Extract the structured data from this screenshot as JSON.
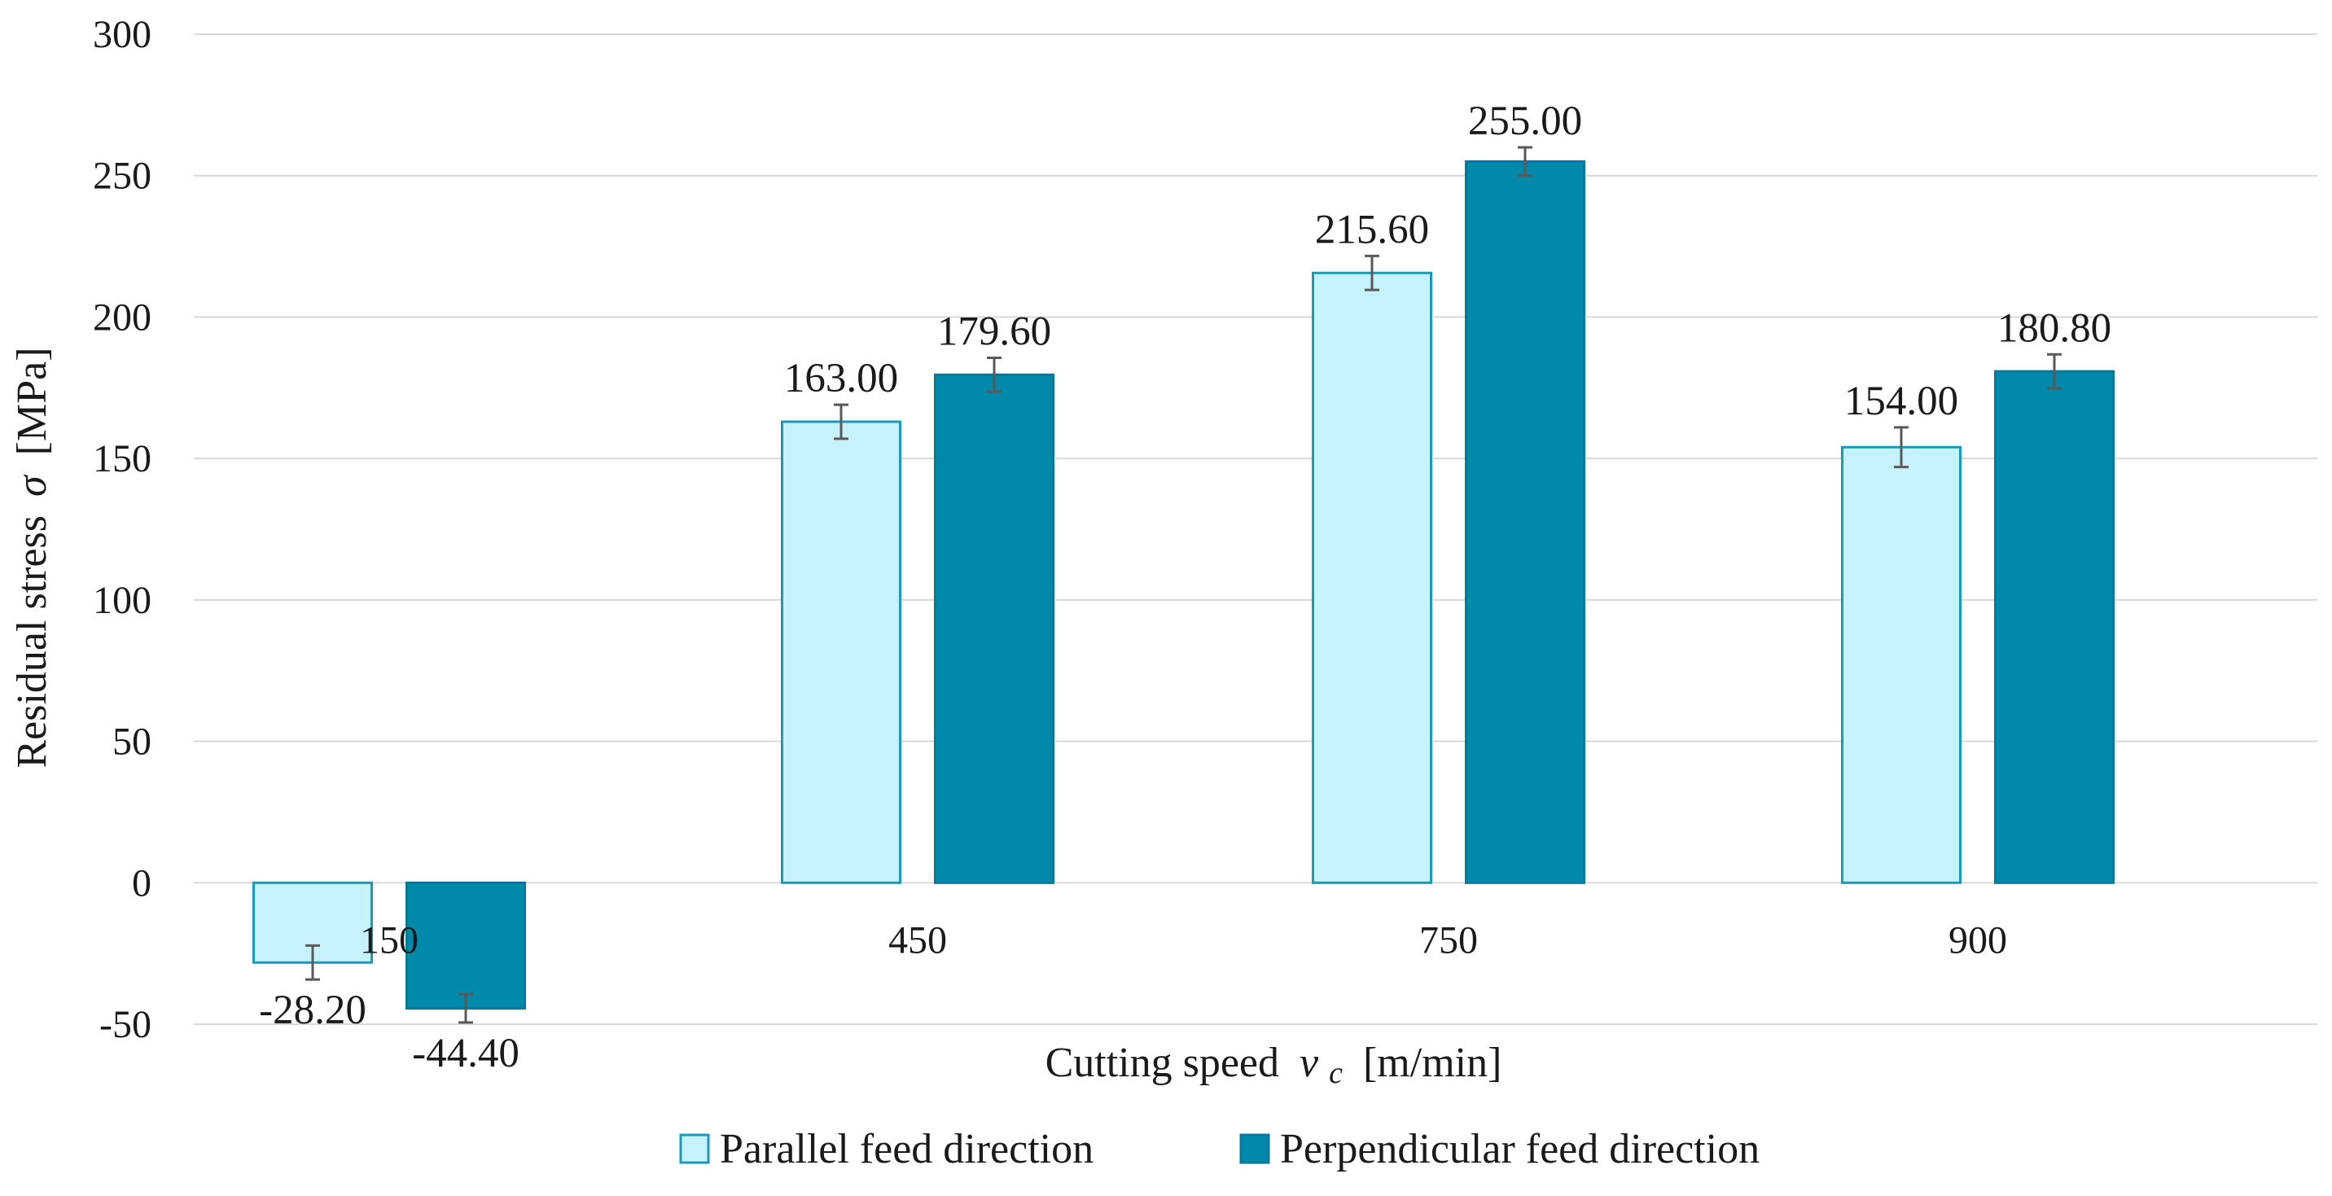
{
  "chart_data": {
    "type": "bar",
    "title": "",
    "categories": [
      "150",
      "450",
      "750",
      "900"
    ],
    "series": [
      {
        "name": "Parallel feed direction",
        "values": [
          -28.2,
          163.0,
          215.6,
          154.0
        ],
        "labels": [
          "-28.20",
          "163.00",
          "215.60",
          "154.00"
        ],
        "errors": [
          6,
          6,
          6,
          7
        ],
        "fill": "#c6f3fb",
        "stroke": "#1b9ab8"
      },
      {
        "name": "Perpendicular feed direction",
        "values": [
          -44.4,
          179.6,
          255.0,
          180.8
        ],
        "labels": [
          "-44.40",
          "179.60",
          "255.00",
          "180.80"
        ],
        "errors": [
          5,
          6,
          5,
          6
        ],
        "fill": "#0089ab",
        "stroke": "#007a99"
      }
    ],
    "y_ticks": [
      300,
      250,
      200,
      150,
      100,
      50,
      0,
      -50
    ],
    "y_tick_labels": [
      "300",
      "250",
      "200",
      "150",
      "100",
      "50",
      "0",
      "-50"
    ],
    "ylim": [
      -50,
      300
    ],
    "ylabel_text": "Residual stress",
    "ylabel_symbol": "σ",
    "ylabel_unit": "[MPa]",
    "xlabel_text": "Cutting speed",
    "xlabel_symbol": "v",
    "xlabel_subscript": "c",
    "xlabel_unit": "[m/min]",
    "grid": true,
    "legend_position": "bottom-center",
    "colors": {
      "grid": "#d9d9d9",
      "text": "#1a1a1a",
      "error_bar": "#595959"
    }
  }
}
